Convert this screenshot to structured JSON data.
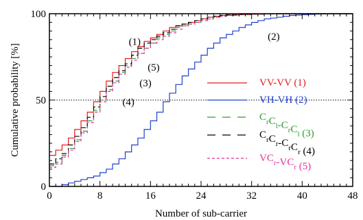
{
  "chart_data": {
    "type": "line",
    "title": "",
    "xlabel": "Number of sub-carrier",
    "ylabel": "Cumulative probability [%]",
    "xlim": [
      0,
      48
    ],
    "ylim": [
      0,
      100
    ],
    "xticks": [
      0,
      8,
      16,
      24,
      32,
      40,
      48
    ],
    "yticks": [
      0,
      50,
      100
    ],
    "reference_line": {
      "y": 50,
      "style": "dotted"
    },
    "grid": false,
    "legend_position": "right",
    "step": true,
    "series": [
      {
        "name": "VV-VV (1)",
        "color": "#e41a1c",
        "dash": "solid",
        "x": [
          0,
          1,
          2,
          3,
          4,
          5,
          6,
          7,
          8,
          9,
          10,
          11,
          12,
          13,
          14,
          15,
          16,
          17,
          18,
          19,
          20,
          21,
          22,
          23,
          24,
          25,
          26,
          27,
          28,
          30,
          32,
          34,
          36,
          38,
          40
        ],
        "y": [
          18,
          21,
          24,
          28,
          33,
          38,
          43,
          49,
          55,
          61,
          66,
          70,
          74,
          78,
          81,
          84,
          86,
          88,
          90,
          92,
          93,
          94,
          95,
          96,
          97,
          98,
          98.5,
          99,
          99.3,
          99.6,
          99.8,
          99.9,
          100,
          100,
          100
        ]
      },
      {
        "name": "VH-VH (2)",
        "color": "#1f3fd0",
        "dash": "solid",
        "x": [
          0,
          1,
          2,
          3,
          4,
          5,
          6,
          7,
          8,
          9,
          10,
          11,
          12,
          13,
          14,
          15,
          16,
          17,
          18,
          19,
          20,
          21,
          22,
          23,
          24,
          25,
          26,
          27,
          28,
          29,
          30,
          31,
          32,
          33,
          34,
          35,
          36,
          37,
          38,
          39,
          40,
          41,
          42,
          43,
          44,
          46
        ],
        "y": [
          0,
          0,
          1,
          2,
          3,
          4,
          5,
          6,
          8,
          10,
          13,
          16,
          20,
          24,
          28,
          33,
          38,
          43,
          49,
          54,
          59,
          64,
          68,
          72,
          76,
          80,
          83,
          86,
          88,
          90,
          92,
          93.5,
          95,
          96,
          97,
          97.5,
          98,
          98.5,
          99,
          99.2,
          99.4,
          99.6,
          99.8,
          99.9,
          100,
          100
        ]
      },
      {
        "name": "C r C l -C r C l (3)",
        "color": "#2e9a2e",
        "dash": "dashed",
        "x": [
          0,
          1,
          2,
          3,
          4,
          5,
          6,
          7,
          8,
          9,
          10,
          11,
          12,
          13,
          14,
          15,
          16,
          17,
          18,
          19,
          20,
          21,
          22,
          23,
          24,
          25,
          26,
          27,
          28,
          30,
          32,
          34,
          36,
          38,
          40
        ],
        "y": [
          12,
          14,
          18,
          22,
          27,
          32,
          38,
          44,
          50,
          56,
          61,
          66,
          70,
          74,
          77,
          80,
          83,
          86,
          88,
          90,
          92,
          93,
          94,
          95,
          96,
          97,
          98,
          98.5,
          99,
          99.4,
          99.7,
          99.9,
          100,
          100,
          100
        ]
      },
      {
        "name": "C r C r -C r C r (4)",
        "color": "#000000",
        "dash": "dashed",
        "x": [
          0,
          1,
          2,
          3,
          4,
          5,
          6,
          7,
          8,
          9,
          10,
          11,
          12,
          13,
          14,
          15,
          16,
          17,
          18,
          19,
          20,
          21,
          22,
          23,
          24,
          25,
          26,
          27,
          28,
          30,
          32,
          34,
          36,
          38,
          40
        ],
        "y": [
          13,
          16,
          19,
          24,
          29,
          34,
          40,
          46,
          52,
          58,
          63,
          67,
          71,
          76,
          80,
          83,
          85,
          87,
          89,
          91,
          93,
          94,
          95,
          96,
          97,
          98,
          98.5,
          99,
          99.3,
          99.6,
          99.8,
          99.9,
          100,
          100,
          100
        ]
      },
      {
        "name": "VC r -VC r (5)",
        "color": "#e0329a",
        "dash": "dashed-short",
        "x": [
          0,
          1,
          2,
          3,
          4,
          5,
          6,
          7,
          8,
          9,
          10,
          11,
          12,
          13,
          14,
          15,
          16,
          17,
          18,
          19,
          20,
          21,
          22,
          23,
          24,
          25,
          26,
          27,
          28,
          30,
          32,
          34,
          36,
          38,
          40
        ],
        "y": [
          11,
          13,
          17,
          21,
          26,
          31,
          37,
          43,
          49,
          55,
          60,
          65,
          69,
          73,
          77,
          80,
          83,
          85,
          87,
          89,
          91,
          93,
          94,
          95,
          96,
          97,
          98,
          98.5,
          99,
          99.4,
          99.7,
          99.9,
          100,
          100,
          100
        ]
      }
    ],
    "annotations": [
      {
        "text": "(1)",
        "x": 13.5,
        "y": 82
      },
      {
        "text": "(5)",
        "x": 16.5,
        "y": 67
      },
      {
        "text": "(3)",
        "x": 15.2,
        "y": 58
      },
      {
        "text": "(4)",
        "x": 12.5,
        "y": 47
      },
      {
        "text": "(2)",
        "x": 35.5,
        "y": 85
      }
    ]
  },
  "legend": {
    "entries": [
      {
        "parts": [
          {
            "t": "VV-VV (1)"
          }
        ]
      },
      {
        "parts": [
          {
            "t": "VH-VH (2)"
          }
        ]
      },
      {
        "parts": [
          {
            "t": "C"
          },
          {
            "t": "r",
            "sub": true
          },
          {
            "t": "C"
          },
          {
            "t": "l",
            "sub": true
          },
          {
            "t": "-C"
          },
          {
            "t": "r",
            "sub": true
          },
          {
            "t": "C"
          },
          {
            "t": "l",
            "sub": true
          },
          {
            "t": " (3)"
          }
        ]
      },
      {
        "parts": [
          {
            "t": "C"
          },
          {
            "t": "r",
            "sub": true
          },
          {
            "t": "C"
          },
          {
            "t": "r",
            "sub": true
          },
          {
            "t": "-C"
          },
          {
            "t": "r",
            "sub": true
          },
          {
            "t": "C"
          },
          {
            "t": "r",
            "sub": true
          },
          {
            "t": " (4)"
          }
        ]
      },
      {
        "parts": [
          {
            "t": "VC"
          },
          {
            "t": "r",
            "sub": true
          },
          {
            "t": "-VC"
          },
          {
            "t": "r",
            "sub": true
          },
          {
            "t": " (5)"
          }
        ]
      }
    ]
  }
}
